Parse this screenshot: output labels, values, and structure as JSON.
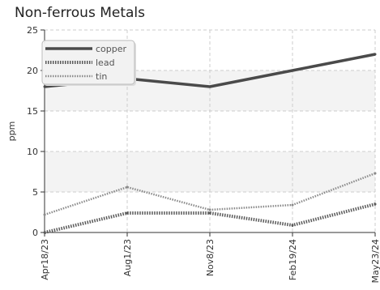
{
  "chart_data": {
    "type": "line",
    "title": "Non-ferrous Metals",
    "xlabel": "",
    "ylabel": "ppm",
    "categories": [
      "Apr18/23",
      "Aug1/23",
      "Nov8/23",
      "Feb19/24",
      "May23/24"
    ],
    "ylim": [
      0,
      25
    ],
    "yticks": [
      0,
      5,
      10,
      15,
      20,
      25
    ],
    "grid": true,
    "legend_position": "top-left",
    "series": [
      {
        "name": "copper",
        "values": [
          18.0,
          19.0,
          18.0,
          20.0,
          22.0
        ],
        "color": "#4a4a4a",
        "style": "solid"
      },
      {
        "name": "lead",
        "values": [
          0.0,
          2.4,
          2.4,
          0.9,
          3.5
        ],
        "color": "#5a5a5a",
        "style": "dotted"
      },
      {
        "name": "tin",
        "values": [
          2.2,
          5.6,
          2.8,
          3.4,
          7.3
        ],
        "color": "#8a8a8a",
        "style": "dotted"
      }
    ]
  }
}
